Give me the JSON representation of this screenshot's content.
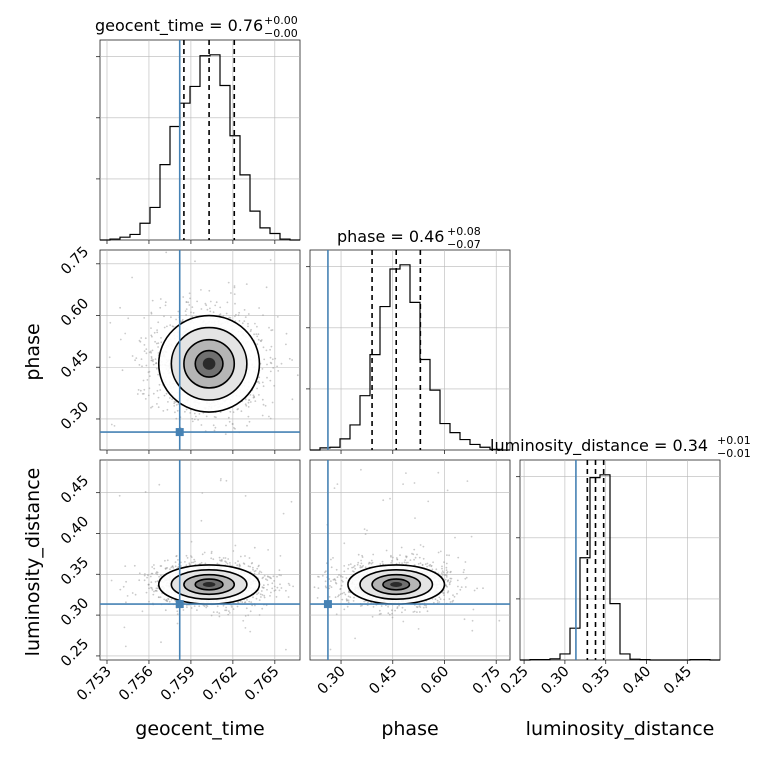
{
  "chart_data": {
    "type": "corner",
    "parameters": [
      "geocent_time",
      "phase",
      "luminosity_distance"
    ],
    "truths": {
      "geocent_time": 0.7582,
      "phase": 0.262,
      "luminosity_distance": 0.3135
    },
    "truth_color": "#4682b4",
    "titles": {
      "geocent_time": {
        "text": "geocent_time = 0.76",
        "plus": "+0.00",
        "minus": "−0.00"
      },
      "phase": {
        "text": "phase = 0.46",
        "plus": "+0.08",
        "minus": "−0.07"
      },
      "luminosity_distance": {
        "text": "luminosity_distance = 0.34",
        "plus": "+0.01",
        "minus": "−0.01"
      }
    },
    "ranges": {
      "geocent_time": [
        0.7525,
        0.7668
      ],
      "phase": [
        0.21,
        0.79
      ],
      "luminosity_distance": [
        0.245,
        0.49
      ]
    },
    "ticks": {
      "geocent_time": [
        "0.753",
        "0.756",
        "0.759",
        "0.762",
        "0.765"
      ],
      "phase": [
        "0.30",
        "0.45",
        "0.60",
        "0.75"
      ],
      "luminosity_distance": [
        "0.25",
        "0.30",
        "0.35",
        "0.40",
        "0.45"
      ]
    },
    "quantiles": {
      "geocent_time": [
        0.7585,
        0.7603,
        0.7621
      ],
      "phase": [
        0.39,
        0.46,
        0.53
      ],
      "luminosity_distance": [
        0.3275,
        0.3375,
        0.3475
      ]
    },
    "histograms": {
      "geocent_time": {
        "edges": [
          0.7525,
          0.753215,
          0.75393,
          0.754645,
          0.75536,
          0.756075,
          0.75679,
          0.757505,
          0.75822,
          0.758935,
          0.75965,
          0.760365,
          0.76108,
          0.761795,
          0.76251,
          0.763225,
          0.76394,
          0.764655,
          0.76537,
          0.766085,
          0.7668
        ],
        "counts": [
          0,
          1,
          3,
          6,
          18,
          35,
          81,
          122,
          147,
          165,
          198,
          199,
          166,
          112,
          70,
          31,
          13,
          7,
          1,
          0
        ]
      },
      "phase": {
        "edges": [
          0.21,
          0.239,
          0.268,
          0.297,
          0.326,
          0.355,
          0.384,
          0.413,
          0.442,
          0.471,
          0.5,
          0.529,
          0.558,
          0.587,
          0.616,
          0.645,
          0.674,
          0.703,
          0.732,
          0.761,
          0.79
        ],
        "counts": [
          0,
          3,
          4,
          16,
          36,
          78,
          137,
          206,
          260,
          266,
          212,
          130,
          86,
          38,
          25,
          15,
          8,
          4,
          1,
          0
        ]
      },
      "luminosity_distance": {
        "edges": [
          0.245,
          0.25725,
          0.2695,
          0.28175,
          0.294,
          0.30625,
          0.3185,
          0.33075,
          0.343,
          0.35525,
          0.3675,
          0.37975,
          0.392,
          0.40425,
          0.4165,
          0.42875,
          0.441,
          0.45325,
          0.4655,
          0.47775,
          0.49
        ],
        "counts": [
          0,
          1,
          1,
          3,
          15,
          79,
          254,
          453,
          460,
          140,
          15,
          2,
          1,
          0,
          0,
          0,
          0,
          1,
          1,
          0
        ]
      }
    },
    "pairs": [
      {
        "x": "geocent_time",
        "y": "phase",
        "center": [
          0.7603,
          0.46
        ],
        "sigma": [
          0.0018,
          0.07
        ]
      },
      {
        "x": "geocent_time",
        "y": "luminosity_distance",
        "center": [
          0.7603,
          0.3375
        ],
        "sigma": [
          0.0018,
          0.012
        ]
      },
      {
        "x": "phase",
        "y": "luminosity_distance",
        "center": [
          0.46,
          0.3375
        ],
        "sigma": [
          0.07,
          0.012
        ]
      }
    ]
  }
}
